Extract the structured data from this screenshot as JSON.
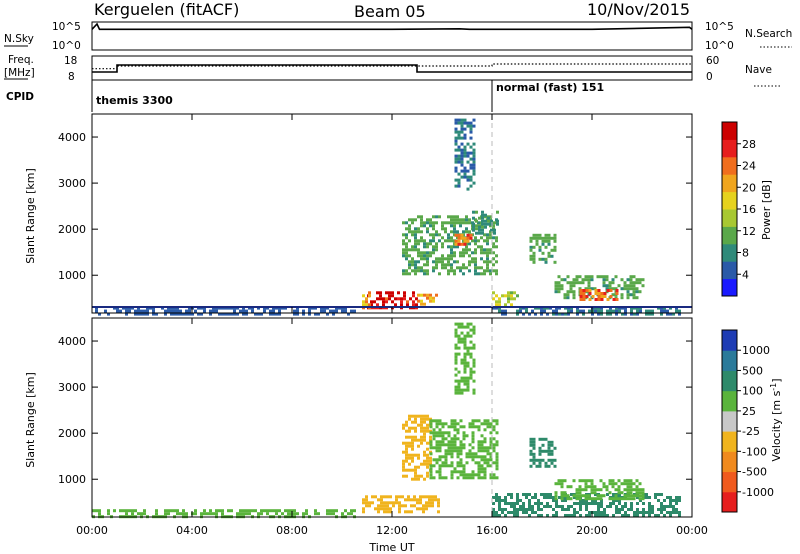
{
  "header": {
    "radar": "Kerguelen (fitACF)",
    "beam": "Beam 05",
    "date": "10/Nov/2015"
  },
  "summary_panels": {
    "nsky_label": "N.Sky",
    "nsky_ticks": [
      "10^5",
      "10^0"
    ],
    "nsearch_label": "N.Search",
    "nsearch_ticks": [
      "10^5",
      "10^0"
    ],
    "freq_label": [
      "Freq.",
      "[MHz]"
    ],
    "freq_ticks": [
      "18",
      "8"
    ],
    "nave_label": "Nave",
    "nave_ticks": [
      "60",
      "0"
    ],
    "cpid_label": "CPID",
    "cpid_segments": [
      {
        "label": "themis 3300",
        "start_hour": 0
      },
      {
        "label": "normal (fast) 151",
        "start_hour": 16
      }
    ]
  },
  "axis": {
    "xlabel": "Time UT",
    "xticks": [
      "00:00",
      "04:00",
      "08:00",
      "12:00",
      "16:00",
      "20:00",
      "00:00"
    ],
    "ylabel": "Slant Range [km]",
    "yticks": [
      "1000",
      "2000",
      "3000",
      "4000"
    ]
  },
  "power_colorbar": {
    "label": "Power [dB]",
    "ticks": [
      "4",
      "8",
      "12",
      "16",
      "20",
      "24",
      "28"
    ],
    "colors": [
      "#1a1aff",
      "#2a5aa8",
      "#2f8a7a",
      "#5aa84a",
      "#a8c832",
      "#e6d21e",
      "#f0a51e",
      "#f06e1e",
      "#e61e1e",
      "#cc0000"
    ]
  },
  "velocity_colorbar": {
    "label_main": "Velocity  [m s",
    "label_sup": "-1",
    "label_end": "]",
    "ticks": [
      "1000",
      "500",
      "100",
      "25",
      "-25",
      "-100",
      "-500",
      "-1000"
    ],
    "colors": [
      "#1e3cb4",
      "#2a7a9a",
      "#2e8a6a",
      "#5ab43c",
      "#c8c8c8",
      "#f0b41e",
      "#f08a1e",
      "#f05a1e",
      "#e61e1e"
    ]
  },
  "chart_data": [
    {
      "type": "line",
      "title": "N.Sky / N.Search",
      "x_range_hours": [
        0,
        24
      ],
      "ylim_log10": [
        0,
        5
      ],
      "series": [
        {
          "name": "N.Sky",
          "style": "solid",
          "x": [
            0,
            0.2,
            0.3,
            1,
            4,
            8,
            12,
            14.7,
            15.1,
            16,
            20,
            23.9,
            24
          ],
          "y_log10": [
            3.9,
            5.0,
            3.9,
            3.9,
            3.9,
            3.9,
            3.9,
            4.0,
            3.9,
            3.9,
            3.9,
            4.3,
            3.9
          ]
        }
      ]
    },
    {
      "type": "line",
      "title": "Freq. / Nave",
      "x_range_hours": [
        0,
        24
      ],
      "ylim_freq_mhz": [
        8,
        18
      ],
      "ylim_nave": [
        0,
        60
      ],
      "series": [
        {
          "name": "Freq.",
          "style": "solid",
          "x": [
            0,
            1,
            1,
            13,
            13,
            24
          ],
          "y": [
            11,
            11,
            14.5,
            14.5,
            11,
            11
          ]
        },
        {
          "name": "Nave",
          "style": "dotted",
          "x": [
            0,
            1,
            1,
            16,
            16,
            24
          ],
          "y_nave": [
            28,
            28,
            36,
            36,
            42,
            42
          ]
        }
      ]
    },
    {
      "type": "heatmap",
      "title": "Power [dB]",
      "x_range_hours": [
        0,
        24
      ],
      "ylim_km": [
        180,
        4500
      ],
      "units": "dB",
      "regions": [
        {
          "t0": 11.0,
          "t1": 13.0,
          "r0": 300,
          "r1": 650,
          "value": 28
        },
        {
          "t0": 10.8,
          "t1": 11.1,
          "r0": 300,
          "r1": 650,
          "value": 20
        },
        {
          "t0": 13.0,
          "t1": 13.8,
          "r0": 350,
          "r1": 600,
          "value": 20
        },
        {
          "t0": 16.0,
          "t1": 17.0,
          "r0": 350,
          "r1": 650,
          "value": 14
        },
        {
          "t0": 16.0,
          "t1": 23.5,
          "r0": 180,
          "r1": 320,
          "value": 6
        },
        {
          "t0": 0.0,
          "t1": 10.5,
          "r0": 180,
          "r1": 320,
          "value": 5
        },
        {
          "t0": 12.4,
          "t1": 16.2,
          "r0": 1000,
          "r1": 2300,
          "value": 10
        },
        {
          "t0": 14.5,
          "t1": 15.2,
          "r0": 1650,
          "r1": 1900,
          "value": 22
        },
        {
          "t0": 15.2,
          "t1": 16.2,
          "r0": 1900,
          "r1": 2400,
          "value": 8
        },
        {
          "t0": 14.5,
          "t1": 15.3,
          "r0": 2900,
          "r1": 4400,
          "value": 6
        },
        {
          "t0": 17.5,
          "t1": 18.5,
          "r0": 1300,
          "r1": 1900,
          "value": 10
        },
        {
          "t0": 18.5,
          "t1": 22.0,
          "r0": 500,
          "r1": 1000,
          "value": 10
        },
        {
          "t0": 19.5,
          "t1": 21.0,
          "r0": 500,
          "r1": 700,
          "value": 22
        }
      ]
    },
    {
      "type": "heatmap",
      "title": "Velocity [m s-1]",
      "x_range_hours": [
        0,
        24
      ],
      "ylim_km": [
        180,
        4500
      ],
      "units": "m s-1",
      "regions": [
        {
          "t0": 10.8,
          "t1": 13.8,
          "r0": 300,
          "r1": 650,
          "value": -300
        },
        {
          "t0": 12.4,
          "t1": 13.5,
          "r0": 1000,
          "r1": 2400,
          "value": -300
        },
        {
          "t0": 13.5,
          "t1": 16.2,
          "r0": 1000,
          "r1": 2300,
          "value": 0
        },
        {
          "t0": 16.0,
          "t1": 23.5,
          "r0": 180,
          "r1": 700,
          "value": 60
        },
        {
          "t0": 17.5,
          "t1": 18.5,
          "r0": 1300,
          "r1": 1900,
          "value": 60
        },
        {
          "t0": 18.5,
          "t1": 22.0,
          "r0": 600,
          "r1": 1000,
          "value": 0
        },
        {
          "t0": 14.5,
          "t1": 15.3,
          "r0": 2900,
          "r1": 4400,
          "value": 0
        },
        {
          "t0": 0.0,
          "t1": 10.5,
          "r0": 180,
          "r1": 350,
          "value": 0
        }
      ]
    }
  ]
}
